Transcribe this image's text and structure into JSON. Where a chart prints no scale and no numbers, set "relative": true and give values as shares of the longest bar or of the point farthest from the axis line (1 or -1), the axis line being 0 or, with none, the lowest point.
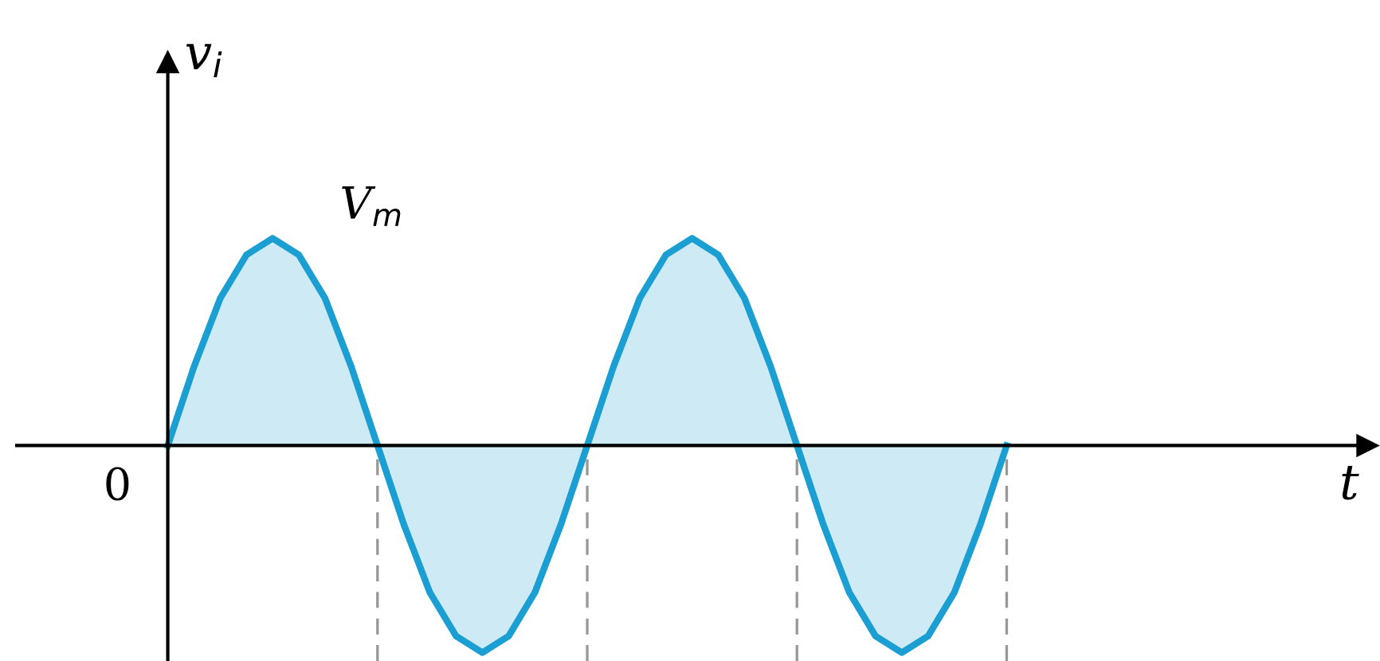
{
  "chart_data": {
    "type": "area",
    "relative": true,
    "ylabel": "v$_{i}$",
    "categories": [
      null,
      null,
      null,
      null,
      null,
      null,
      null,
      null,
      null,
      null,
      null,
      null,
      null,
      null,
      null,
      null,
      null,
      null,
      null,
      null,
      null,
      null,
      null,
      null,
      null,
      null,
      null,
      null,
      null,
      null,
      null,
      null,
      null
    ],
    "series": [
      {
        "color": "#1b9fd2",
        "values": [
          0,
          0.38,
          0.71,
          0.92,
          1,
          0.92,
          0.71,
          0.38,
          0,
          -0.38,
          -0.71,
          -0.92,
          -1,
          -0.92,
          -0.71,
          -0.38,
          0,
          0.38,
          0.71,
          0.92,
          1,
          0.92,
          0.71,
          0.38,
          0,
          -0.38,
          -0.71,
          -0.92,
          -1,
          -0.92,
          -0.71,
          -0.38,
          0
        ]
      }
    ],
    "annotations": [
      "V$_{m}$",
      "0",
      "t"
    ]
  }
}
